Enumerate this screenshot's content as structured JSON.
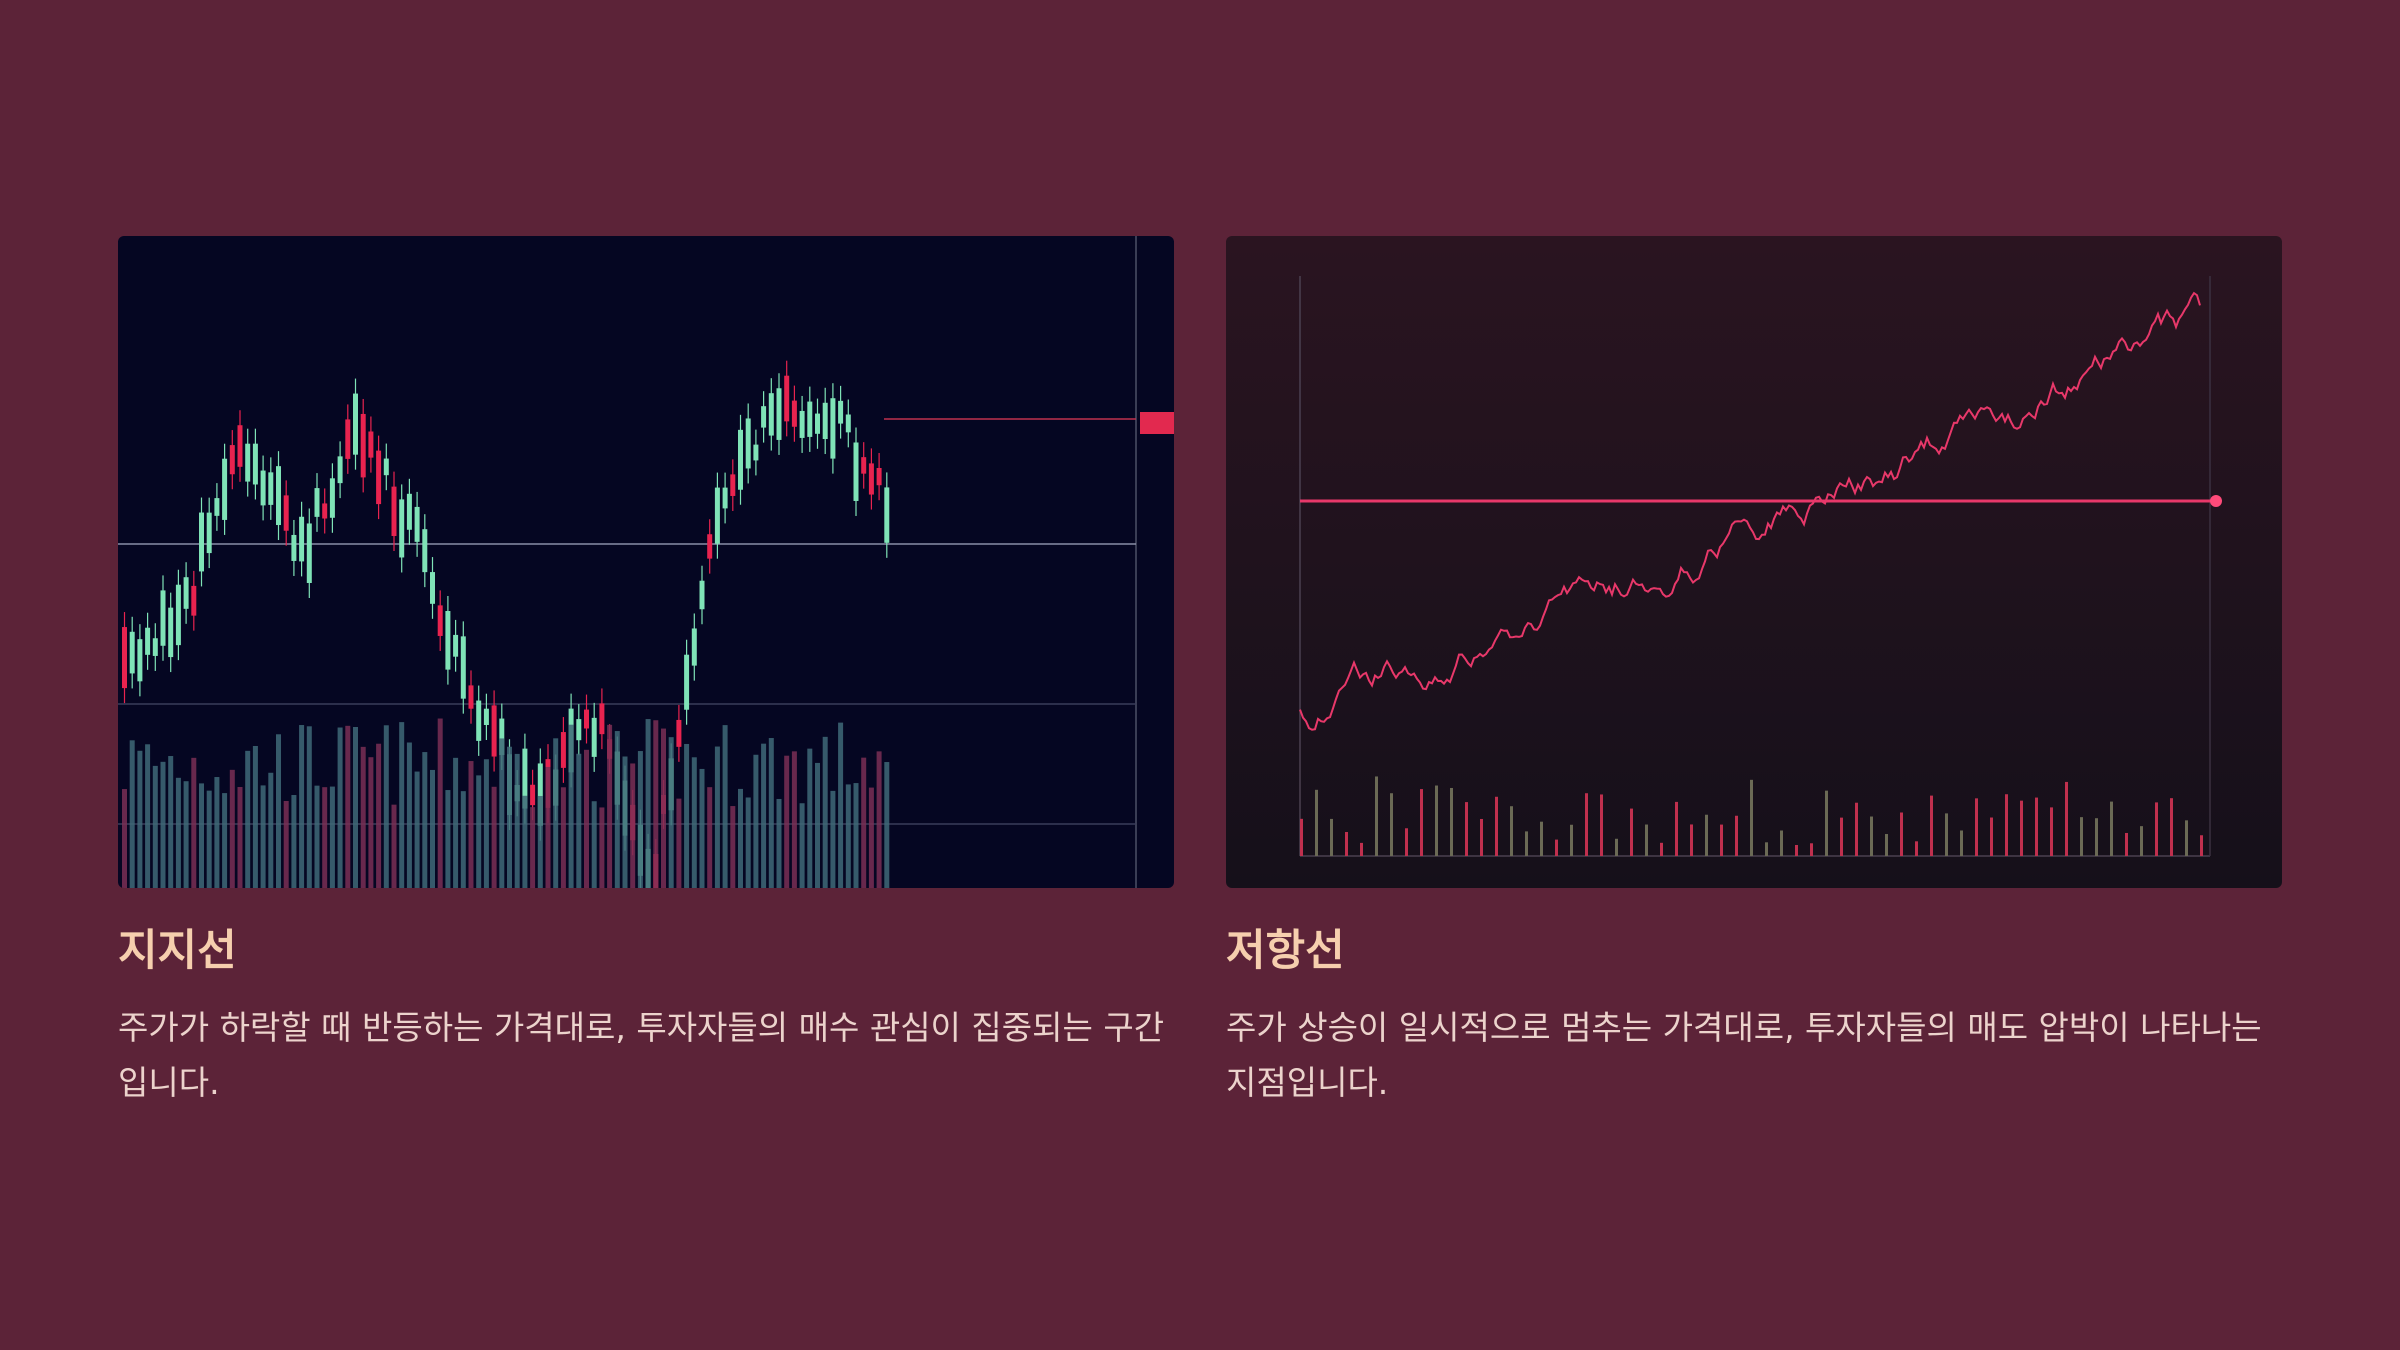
{
  "cards": [
    {
      "title": "지지선",
      "description": "주가가 하락할 때 반등하는 가격대로, 투자자들의 매수 관심이 집중되는 구간입니다."
    },
    {
      "title": "저항선",
      "description": "주가 상승이 일시적으로 멈추는 가격대로, 투자자들의 매도 압박이 나타나는 지점입니다."
    }
  ]
}
